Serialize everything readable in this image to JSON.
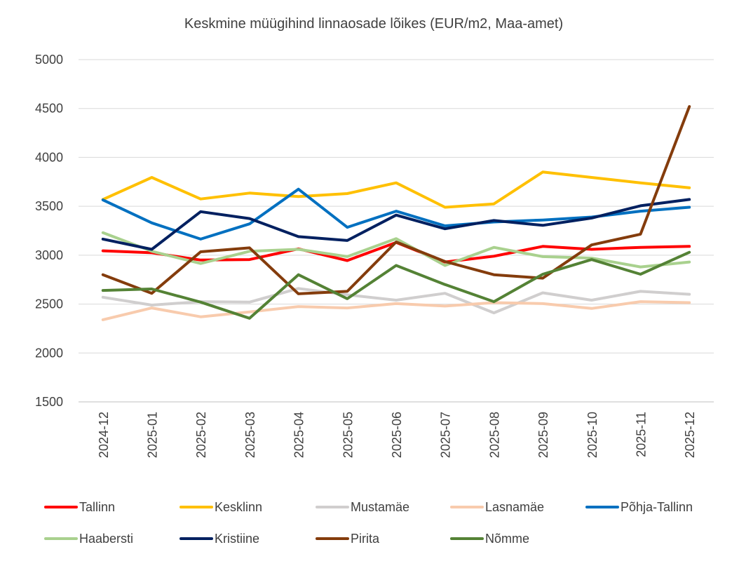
{
  "chart_data": {
    "type": "line",
    "title": "Keskmine müügihind linnaosade lõikes (EUR/m2, Maa-amet)",
    "xlabel": "",
    "ylabel": "",
    "ylim": [
      1500,
      5000
    ],
    "yticks": [
      1500,
      2000,
      2500,
      3000,
      3500,
      4000,
      4500,
      5000
    ],
    "grid": true,
    "legend_position": "bottom",
    "categories": [
      "2024-12",
      "2025-01",
      "2025-02",
      "2025-03",
      "2025-04",
      "2025-05",
      "2025-06",
      "2025-07",
      "2025-08",
      "2025-09",
      "2025-10",
      "2025-11",
      "2025-12"
    ],
    "series": [
      {
        "name": "Tallinn",
        "color": "#ff0000",
        "values": [
          3045,
          3025,
          2950,
          2955,
          3065,
          2945,
          3130,
          2930,
          2990,
          3090,
          3060,
          3080,
          3090
        ]
      },
      {
        "name": "Kesklinn",
        "color": "#ffc000",
        "values": [
          3570,
          3795,
          3575,
          3635,
          3600,
          3630,
          3740,
          3490,
          3525,
          3850,
          3795,
          3740,
          3690
        ]
      },
      {
        "name": "Mustamäe",
        "color": "#d0cece",
        "values": [
          2570,
          2490,
          2525,
          2520,
          2660,
          2595,
          2540,
          2610,
          2410,
          2615,
          2540,
          2630,
          2600
        ]
      },
      {
        "name": "Lasnamäe",
        "color": "#f8cbad",
        "values": [
          2340,
          2460,
          2370,
          2420,
          2475,
          2460,
          2505,
          2480,
          2515,
          2505,
          2455,
          2525,
          2515
        ]
      },
      {
        "name": "Põhja-Tallinn",
        "color": "#0070c0",
        "values": [
          3565,
          3330,
          3165,
          3320,
          3675,
          3285,
          3450,
          3300,
          3340,
          3360,
          3390,
          3450,
          3490
        ]
      },
      {
        "name": "Haabersti",
        "color": "#a9d18e",
        "values": [
          3230,
          3040,
          2915,
          3040,
          3060,
          2985,
          3170,
          2895,
          3080,
          2985,
          2970,
          2880,
          2930
        ]
      },
      {
        "name": "Kristiine",
        "color": "#002060",
        "values": [
          3165,
          3060,
          3445,
          3375,
          3190,
          3150,
          3410,
          3270,
          3355,
          3305,
          3380,
          3505,
          3570
        ]
      },
      {
        "name": "Pirita",
        "color": "#843c0c",
        "values": [
          2800,
          2610,
          3035,
          3075,
          2605,
          2630,
          3135,
          2935,
          2800,
          2765,
          3105,
          3215,
          4520
        ]
      },
      {
        "name": "Nõmme",
        "color": "#548235",
        "values": [
          2640,
          2655,
          2520,
          2355,
          2800,
          2555,
          2895,
          2700,
          2525,
          2805,
          2955,
          2805,
          3030
        ]
      }
    ]
  }
}
